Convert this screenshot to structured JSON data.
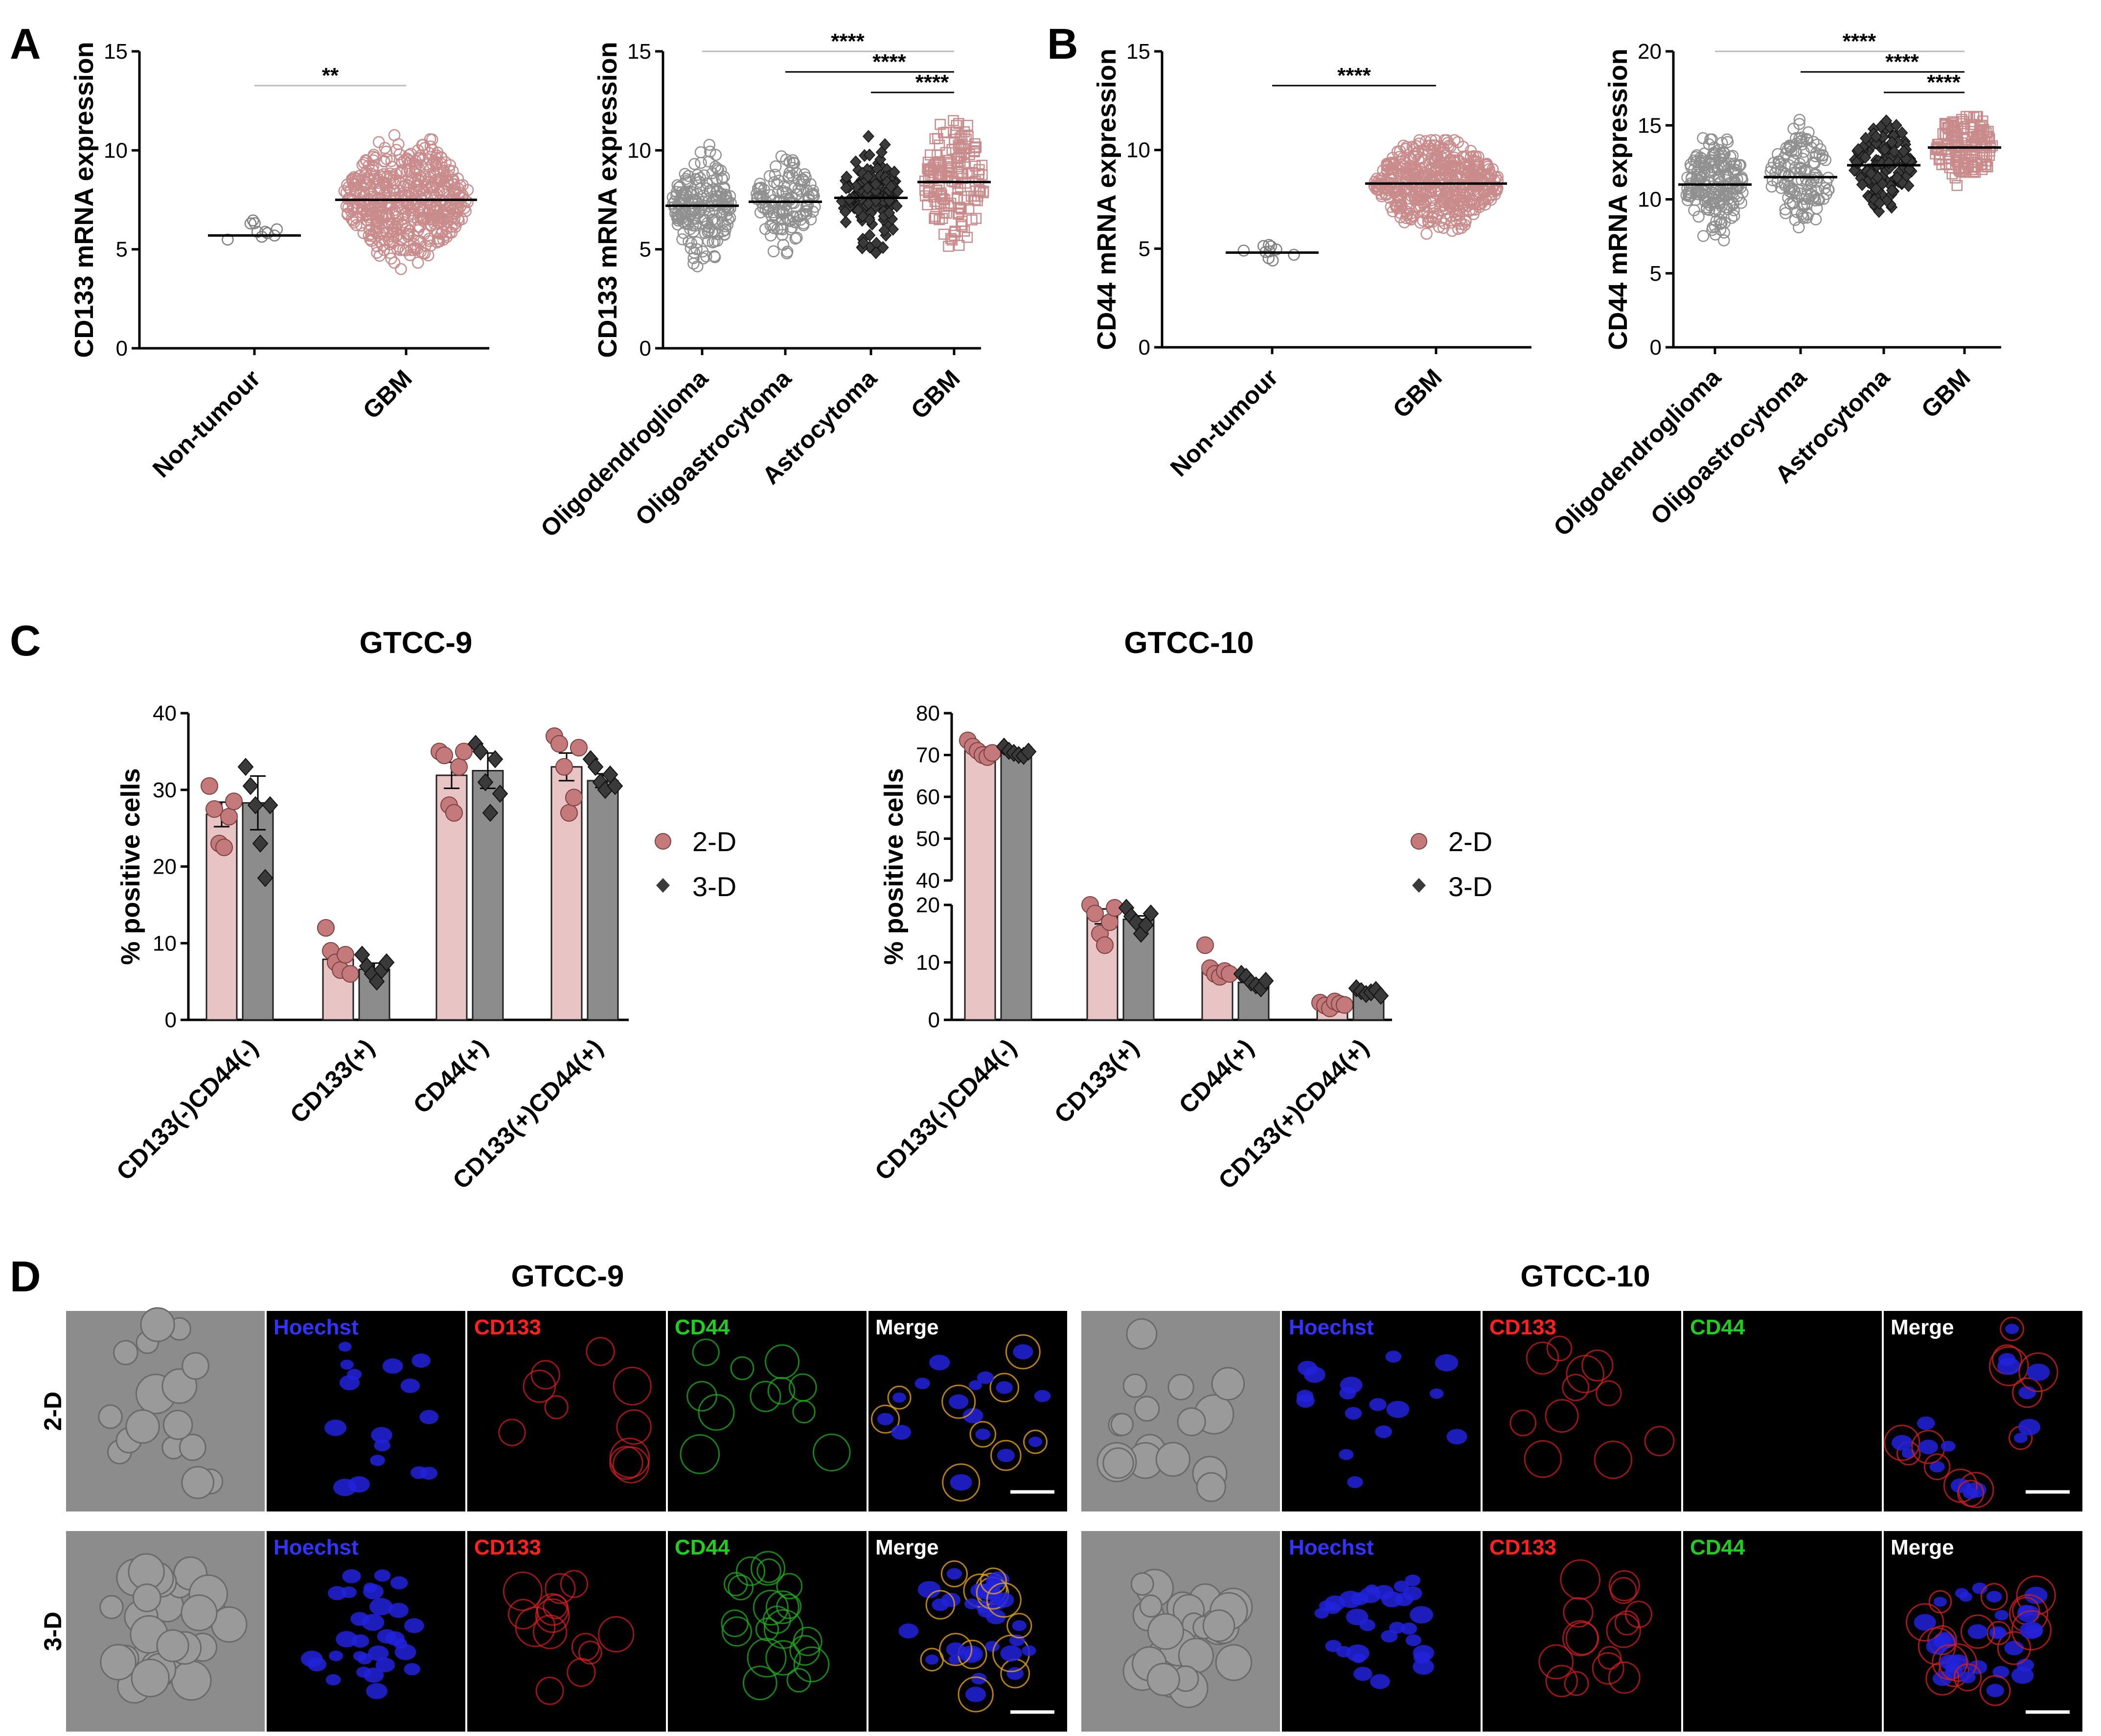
{
  "panels": {
    "A": "A",
    "B": "B",
    "C": "C",
    "D": "D"
  },
  "colors": {
    "gbm": "#c98b8b",
    "gbm_fill": "#e8c4c4",
    "grey": "#808080",
    "dark": "#3a3a3a",
    "bar_2d": "#e8c4c4",
    "bar_3d": "#8c8c8c"
  },
  "chart_data": [
    {
      "id": "A1",
      "type": "scatter",
      "ylabel": "CD133 mRNA expression",
      "ylim": [
        0,
        15
      ],
      "yticks": [
        0,
        5,
        10,
        15
      ],
      "categories": [
        "Non-tumour",
        "GBM"
      ],
      "series": [
        {
          "category": "Non-tumour",
          "n": 10,
          "median": 5.7,
          "min": 5.2,
          "max": 6.5,
          "marker": "circle-open",
          "color": "#808080"
        },
        {
          "category": "GBM",
          "n": 520,
          "median": 7.5,
          "min": 4.0,
          "max": 11.7,
          "marker": "circle-open",
          "color": "#c98b8b"
        }
      ],
      "significance": [
        {
          "from": 0,
          "to": 1,
          "label": "**",
          "line_color": "#bbbbbb"
        }
      ]
    },
    {
      "id": "A2",
      "type": "scatter",
      "ylabel": "CD133 mRNA expression",
      "ylim": [
        0,
        15
      ],
      "yticks": [
        0,
        5,
        10,
        15
      ],
      "categories": [
        "Oligodendroglioma",
        "Oligoastrocytoma",
        "Astrocytoma",
        "GBM"
      ],
      "series": [
        {
          "category": "Oligodendroglioma",
          "n": 190,
          "median": 7.2,
          "min": 3.8,
          "max": 10.8,
          "marker": "circle-open",
          "color": "#909090"
        },
        {
          "category": "Oligoastrocytoma",
          "n": 130,
          "median": 7.4,
          "min": 4.7,
          "max": 10.7,
          "marker": "circle-open",
          "color": "#909090"
        },
        {
          "category": "Astrocytoma",
          "n": 130,
          "median": 7.6,
          "min": 4.2,
          "max": 11.8,
          "marker": "diamond",
          "color": "#3a3a3a"
        },
        {
          "category": "GBM",
          "n": 160,
          "median": 8.4,
          "min": 3.7,
          "max": 12.2,
          "marker": "square-open",
          "color": "#c98b8b"
        }
      ],
      "significance": [
        {
          "from": 0,
          "to": 3,
          "label": "****"
        },
        {
          "from": 1,
          "to": 3,
          "label": "****"
        },
        {
          "from": 2,
          "to": 3,
          "label": "****"
        }
      ]
    },
    {
      "id": "B1",
      "type": "scatter",
      "ylabel": "CD44 mRNA expression",
      "ylim": [
        0,
        15
      ],
      "yticks": [
        0,
        5,
        10,
        15
      ],
      "categories": [
        "Non-tumour",
        "GBM"
      ],
      "series": [
        {
          "category": "Non-tumour",
          "n": 10,
          "median": 4.8,
          "min": 4.4,
          "max": 5.2,
          "marker": "circle-open",
          "color": "#808080"
        },
        {
          "category": "GBM",
          "n": 520,
          "median": 8.3,
          "min": 4.6,
          "max": 10.5,
          "marker": "circle-open",
          "color": "#c98b8b"
        }
      ],
      "significance": [
        {
          "from": 0,
          "to": 1,
          "label": "****"
        }
      ]
    },
    {
      "id": "B2",
      "type": "scatter",
      "ylabel": "CD44 mRNA expression",
      "ylim": [
        0,
        20
      ],
      "yticks": [
        0,
        5,
        10,
        15,
        20
      ],
      "categories": [
        "Oligodendroglioma",
        "Oligoastrocytoma",
        "Astrocytoma",
        "GBM"
      ],
      "series": [
        {
          "category": "Oligodendroglioma",
          "n": 190,
          "median": 11.0,
          "min": 5.6,
          "max": 14.4,
          "marker": "circle-open",
          "color": "#909090"
        },
        {
          "category": "Oligoastrocytoma",
          "n": 130,
          "median": 11.5,
          "min": 6.5,
          "max": 15.5,
          "marker": "circle-open",
          "color": "#909090"
        },
        {
          "category": "Astrocytoma",
          "n": 130,
          "median": 12.3,
          "min": 7.6,
          "max": 15.8,
          "marker": "diamond",
          "color": "#3a3a3a"
        },
        {
          "category": "GBM",
          "n": 160,
          "median": 13.5,
          "min": 8.8,
          "max": 15.6,
          "marker": "square-open",
          "color": "#c98b8b"
        }
      ],
      "significance": [
        {
          "from": 0,
          "to": 3,
          "label": "****"
        },
        {
          "from": 1,
          "to": 3,
          "label": "****"
        },
        {
          "from": 2,
          "to": 3,
          "label": "****"
        }
      ]
    },
    {
      "id": "C1",
      "type": "bar",
      "title": "GTCC-9",
      "ylabel": "% positive cells",
      "ylim": [
        0,
        40
      ],
      "yticks": [
        0,
        10,
        20,
        30,
        40
      ],
      "categories": [
        "CD133(-)CD44(-)",
        "CD133(+)",
        "CD44(+)",
        "CD133(+)CD44(+)"
      ],
      "series": [
        {
          "name": "2-D",
          "values": [
            26.8,
            7.9,
            31.9,
            33.0
          ],
          "sem": [
            1.6,
            1.0,
            1.7,
            1.8
          ],
          "points": [
            [
              30.5,
              27.5,
              23,
              22.5,
              26.5,
              28.5
            ],
            [
              12,
              9,
              7.5,
              6.5,
              8.5,
              6
            ],
            [
              35,
              34.5,
              28,
              27,
              33,
              35
            ],
            [
              37,
              36,
              33,
              27,
              29,
              35.5
            ]
          ]
        },
        {
          "name": "3-D",
          "values": [
            28.3,
            6.6,
            32.5,
            31.2
          ],
          "sem": [
            3.5,
            0.8,
            2.3,
            0.9
          ],
          "points": [
            [
              33,
              30.5,
              28,
              23,
              18.5,
              28
            ],
            [
              8.5,
              7,
              6,
              5,
              6.5,
              7.5
            ],
            [
              36,
              35,
              31,
              27,
              34,
              29.5
            ],
            [
              34,
              33,
              31,
              30,
              32,
              30.5
            ]
          ]
        }
      ],
      "legend": "right"
    },
    {
      "id": "C2",
      "type": "bar",
      "title": "GTCC-10",
      "ylabel": "% positive cells",
      "axis_break": [
        20,
        40
      ],
      "yticks_lower": [
        0,
        10,
        20
      ],
      "yticks_upper": [
        40,
        50,
        60,
        70,
        80
      ],
      "categories": [
        "CD133(-)CD44(-)",
        "CD133(+)",
        "CD44(+)",
        "CD133(+)CD44(+)"
      ],
      "series": [
        {
          "name": "2-D",
          "values": [
            71.0,
            18.0,
            8.5,
            2.7
          ],
          "sem": [
            0.9,
            1.3,
            1.0,
            0.3
          ],
          "points": [
            [
              73.5,
              72,
              71,
              70,
              69.5,
              70.5
            ],
            [
              20,
              18.5,
              15,
              13,
              17,
              19.5
            ],
            [
              13,
              9,
              8,
              7.5,
              8.5,
              8
            ],
            [
              3,
              2.5,
              2,
              3.2,
              2.8,
              2.6
            ]
          ]
        },
        {
          "name": "3-D",
          "values": [
            70.5,
            17.5,
            6.5,
            4.8
          ],
          "sem": [
            0.4,
            0.6,
            0.5,
            0.3
          ],
          "points": [
            [
              72,
              71,
              70.5,
              70,
              69.8,
              70.8
            ],
            [
              19.5,
              18,
              17,
              15,
              16.5,
              18.5
            ],
            [
              8,
              7.5,
              6.5,
              6,
              5.5,
              6.8
            ],
            [
              5.5,
              5,
              4.5,
              4.8,
              5.2,
              4.2
            ]
          ]
        }
      ],
      "legend": "right"
    }
  ],
  "micrographs": {
    "groups": [
      {
        "title": "GTCC-9",
        "seed": 11
      },
      {
        "title": "GTCC-10",
        "seed": 29
      }
    ],
    "rows": [
      "2-D",
      "3-D"
    ],
    "channels": [
      {
        "label": "",
        "color": "#ffffff",
        "kind": "bright"
      },
      {
        "label": "Hoechst",
        "color": "#3333ff",
        "kind": "blue"
      },
      {
        "label": "CD133",
        "color": "#ff2020",
        "kind": "red"
      },
      {
        "label": "CD44",
        "color": "#22cc22",
        "kind": "green"
      },
      {
        "label": "Merge",
        "color": "#ffffff",
        "kind": "merge"
      }
    ]
  }
}
